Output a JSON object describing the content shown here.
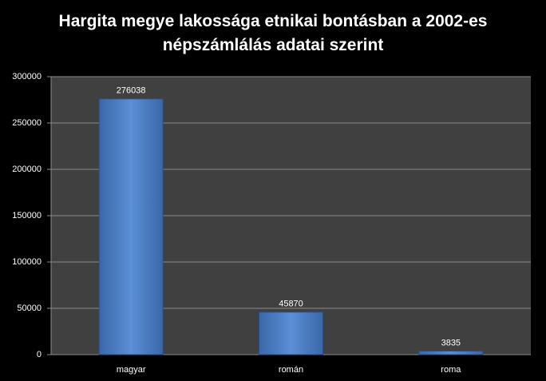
{
  "chart_data": {
    "type": "bar",
    "title": "Hargita megye lakossága etnikai bontásban a 2002-es népszámlálás adatai szerint",
    "categories": [
      "magyar",
      "román",
      "roma"
    ],
    "values": [
      276038,
      45870,
      3835
    ],
    "color": "#4f81bd",
    "ylim": [
      0,
      300000
    ],
    "yticks": [
      0,
      50000,
      100000,
      150000,
      200000,
      250000,
      300000
    ],
    "grid": true
  }
}
